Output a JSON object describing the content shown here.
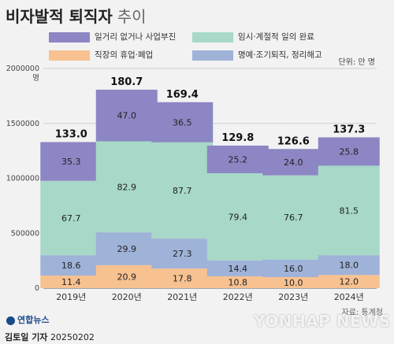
{
  "title": "비자발적 퇴직자",
  "subtitle": "추이",
  "unit_label": "단위: 만 명",
  "legend": [
    {
      "label": "일거리 없거나 사업부진",
      "color": "#8c86c4"
    },
    {
      "label": "임시·계절적 일의 완료",
      "color": "#a7d8c8"
    },
    {
      "label": "직장의 휴업·폐업",
      "color": "#f7c190"
    },
    {
      "label": "명예·조기퇴직, 정리해고",
      "color": "#9fb2d8"
    }
  ],
  "source": "자료: 통계청",
  "reporter": "김토일 기자",
  "date": "20250202",
  "logo_text": "연합뉴스",
  "watermark": "YONHAP NEWS",
  "chart_data": {
    "type": "bar",
    "stacked": true,
    "categories": [
      "2019년",
      "2020년",
      "2021년",
      "2022년",
      "2023년",
      "2024년"
    ],
    "totals": [
      133.0,
      180.7,
      169.4,
      129.8,
      126.6,
      137.3
    ],
    "series": [
      {
        "name": "직장의 휴업·폐업",
        "color": "#f7c190",
        "values": [
          11.4,
          20.9,
          17.8,
          10.8,
          10.0,
          12.0
        ]
      },
      {
        "name": "명예·조기퇴직, 정리해고",
        "color": "#9fb2d8",
        "values": [
          18.6,
          29.9,
          27.3,
          14.4,
          16.0,
          18.0
        ]
      },
      {
        "name": "임시·계절적 일의 완료",
        "color": "#a7d8c8",
        "values": [
          67.7,
          82.9,
          87.7,
          79.4,
          76.7,
          81.5
        ]
      },
      {
        "name": "일거리 없거나 사업부진",
        "color": "#8c86c4",
        "values": [
          35.3,
          47.0,
          36.5,
          25.2,
          24.0,
          25.8
        ]
      }
    ],
    "yticks": [
      0,
      500000,
      1000000,
      1500000,
      2000000
    ],
    "ytick_labels": [
      "0",
      "500000",
      "1000000",
      "1500000",
      "2000000"
    ],
    "ytop_suffix": "명",
    "ylim": [
      0,
      2000000
    ],
    "grid": true
  }
}
